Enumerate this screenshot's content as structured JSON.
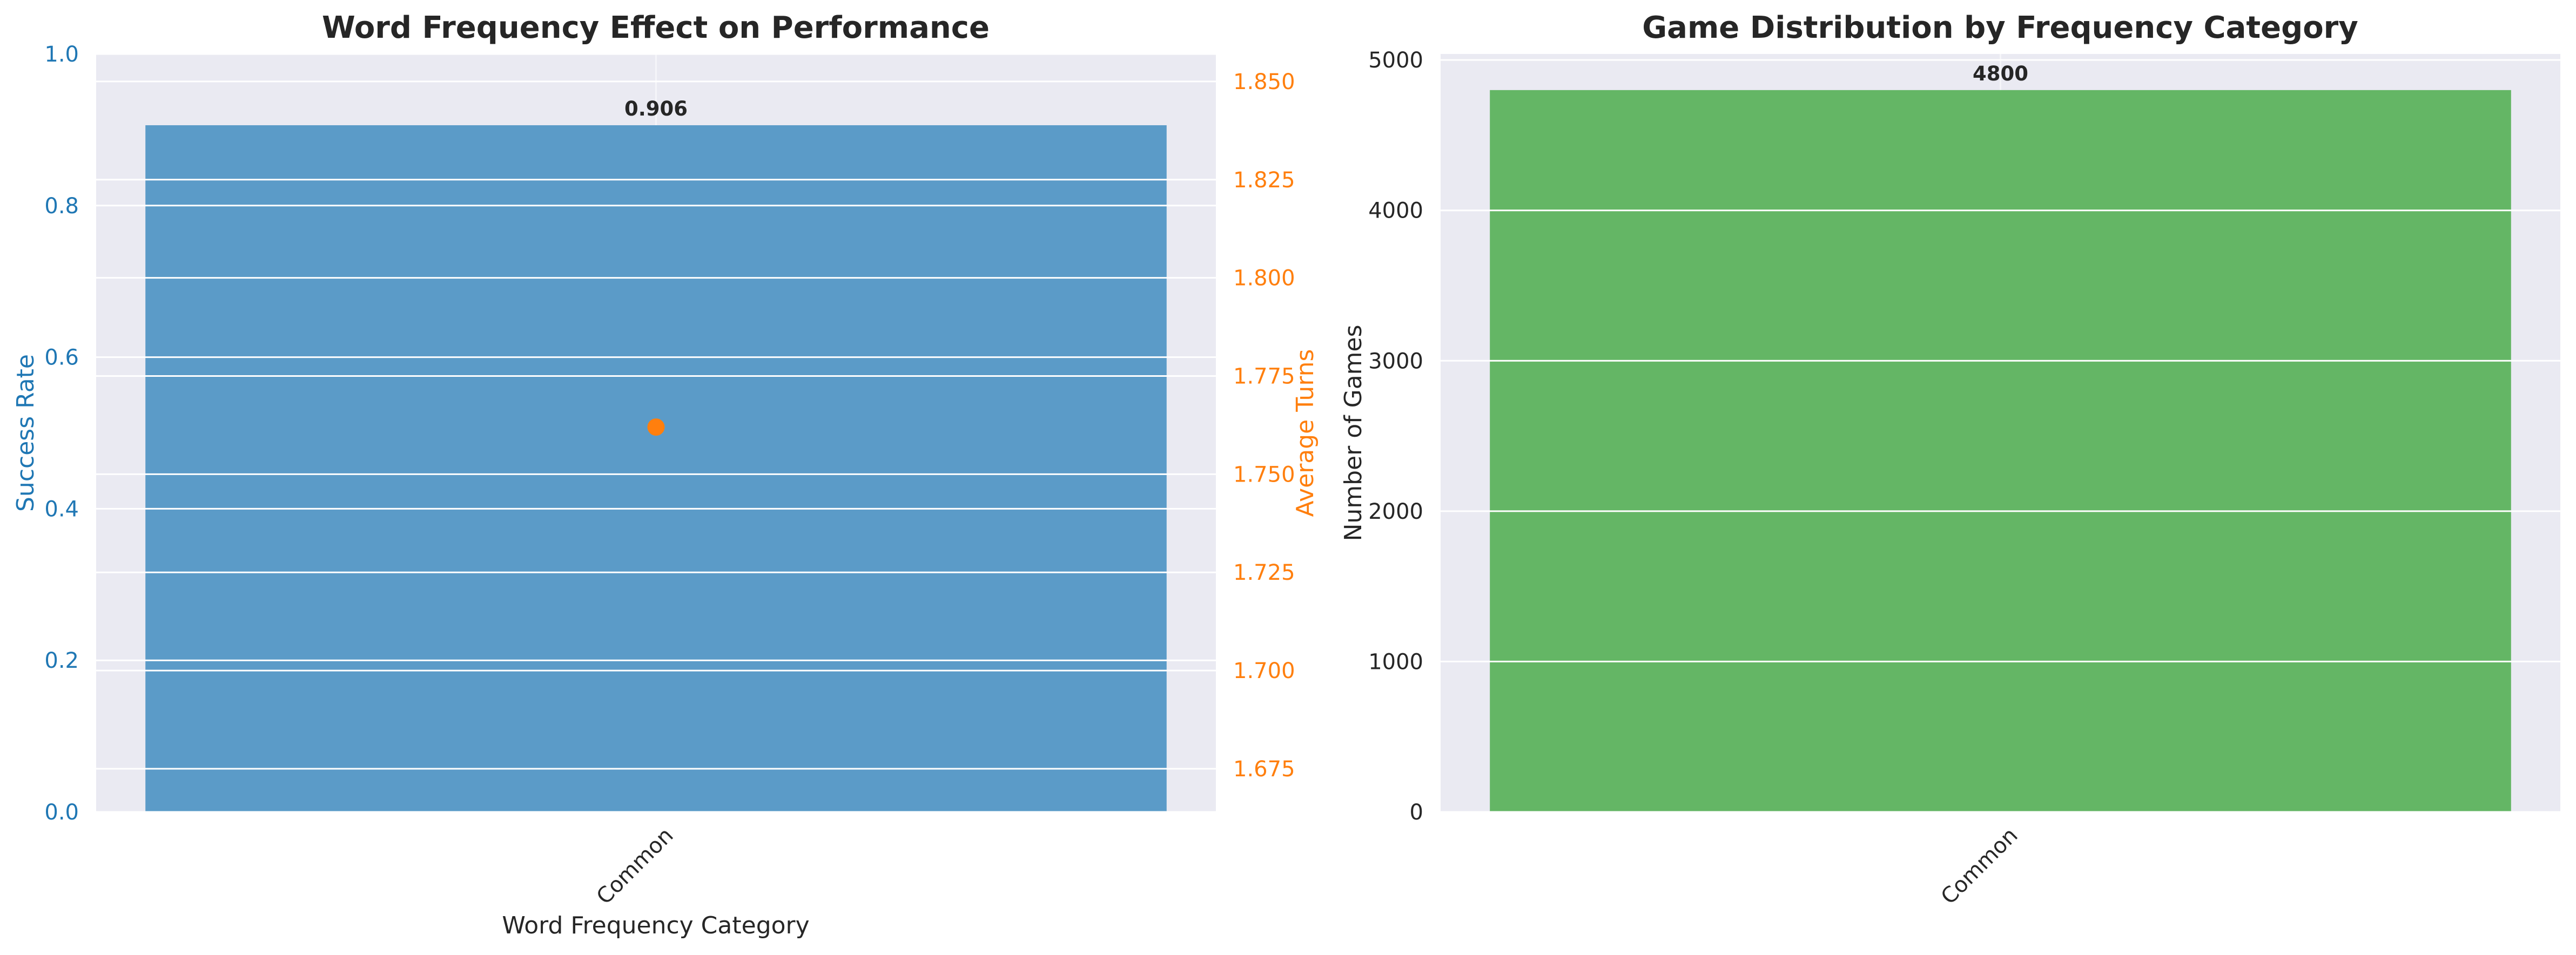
{
  "chart_data": [
    {
      "type": "bar",
      "title": "Word Frequency Effect on Performance",
      "xlabel": "Word Frequency Category",
      "ylabel": "Success Rate",
      "y2label": "Average Turns",
      "categories": [
        "Common"
      ],
      "series": [
        {
          "name": "Success Rate",
          "type": "bar",
          "axis": "left",
          "values": [
            0.906
          ],
          "data_labels": [
            "0.906"
          ]
        },
        {
          "name": "Average Turns",
          "type": "scatter",
          "axis": "right",
          "values": [
            1.762
          ]
        }
      ],
      "ylim": [
        0,
        1.0
      ],
      "y2lim": [
        1.664,
        1.857
      ],
      "yticks": [
        "0.0",
        "0.2",
        "0.4",
        "0.6",
        "0.8",
        "1.0"
      ],
      "y2ticks": [
        "1.675",
        "1.700",
        "1.725",
        "1.750",
        "1.775",
        "1.800",
        "1.825",
        "1.850"
      ],
      "grid": true,
      "colors": {
        "bar": "#5b9bc8",
        "point": "#ff7f0e",
        "left_axis": "#1f77b4",
        "right_axis": "#ff7f0e"
      }
    },
    {
      "type": "bar",
      "title": "Game Distribution by Frequency Category",
      "xlabel": "",
      "ylabel": "Number of Games",
      "categories": [
        "Common"
      ],
      "series": [
        {
          "name": "Number of Games",
          "values": [
            4800
          ],
          "data_labels": [
            "4800"
          ]
        }
      ],
      "ylim": [
        0,
        5040
      ],
      "yticks": [
        "0",
        "1000",
        "2000",
        "3000",
        "4000",
        "5000"
      ],
      "grid": true,
      "colors": {
        "bar": "#64b665"
      }
    }
  ]
}
